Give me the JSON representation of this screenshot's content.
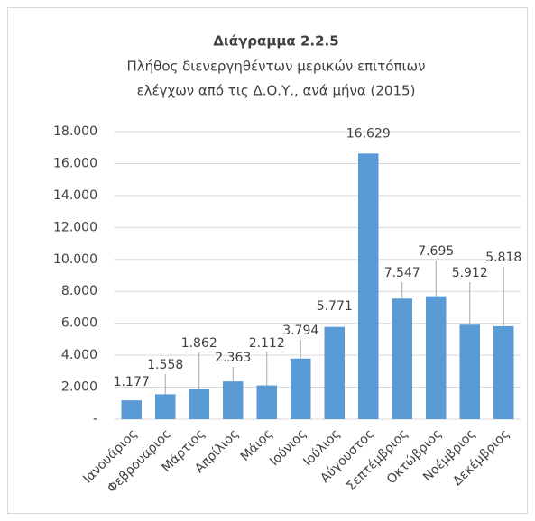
{
  "chart_data": {
    "type": "bar",
    "title": "Διάγραμμα 2.2.5",
    "subtitle": [
      "Πλήθος διενεργηθέντων μερικών επιτόπιων",
      "ελέγχων από τις Δ.Ο.Υ., ανά μήνα (2015)"
    ],
    "categories": [
      "Ιανουάριος",
      "Φεβρουάριος",
      "Μάρτιος",
      "Απρίλιος",
      "Μάιος",
      "Ιούνιος",
      "Ιούλιος",
      "Αύγουστος",
      "Σεπτέμβριος",
      "Οκτώβριος",
      "Νοέμβριος",
      "Δεκέμβριος"
    ],
    "values": [
      1177,
      1558,
      1862,
      2363,
      2112,
      3794,
      5771,
      16629,
      7547,
      7695,
      5912,
      5818
    ],
    "value_labels": [
      "1.177",
      "1.558",
      "1.862",
      "2.363",
      "2.112",
      "3.794",
      "5.771",
      "16.629",
      "7.547",
      "7.695",
      "5.912",
      "5.818"
    ],
    "color": "#5b9bd5",
    "ylim": [
      0,
      18000
    ],
    "yticks": [
      {
        "value": 0,
        "label": "-"
      },
      {
        "value": 2000,
        "label": "2.000"
      },
      {
        "value": 4000,
        "label": "4.000"
      },
      {
        "value": 6000,
        "label": "6.000"
      },
      {
        "value": 8000,
        "label": "8.000"
      },
      {
        "value": 10000,
        "label": "10.000"
      },
      {
        "value": 12000,
        "label": "12.000"
      },
      {
        "value": 14000,
        "label": "14.000"
      },
      {
        "value": 16000,
        "label": "16.000"
      },
      {
        "value": 18000,
        "label": "18.000"
      }
    ],
    "grid": true
  }
}
